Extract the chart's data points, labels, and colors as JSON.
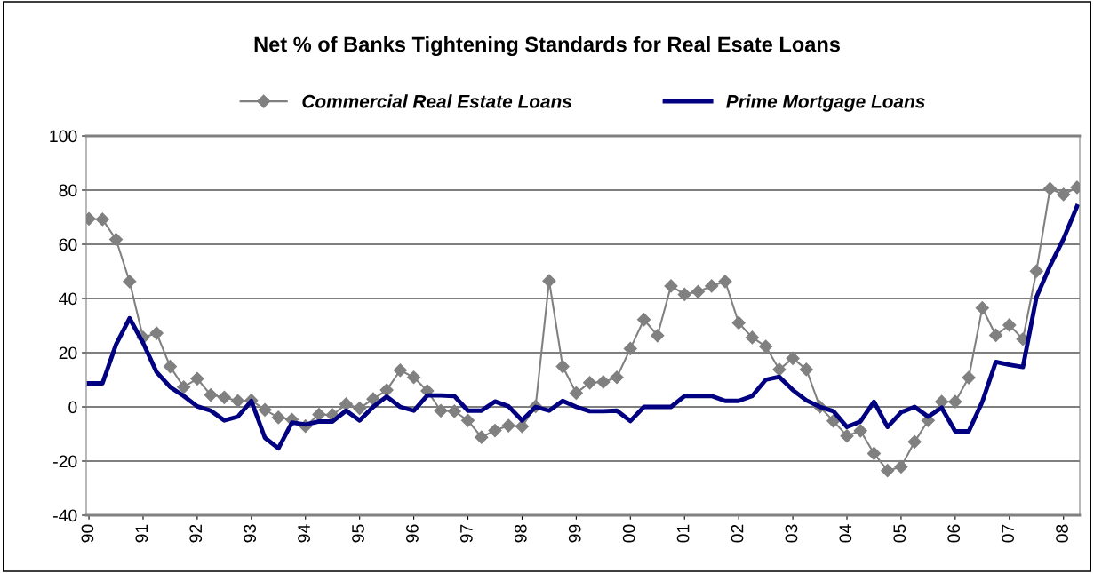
{
  "chart_data": {
    "type": "line",
    "title": "Net % of Banks Tightening Standards for Real Esate Loans",
    "categories": [
      "90",
      null,
      null,
      null,
      "91",
      null,
      null,
      null,
      "92",
      null,
      null,
      null,
      "93",
      null,
      null,
      null,
      "94",
      null,
      null,
      null,
      "95",
      null,
      null,
      null,
      "96",
      null,
      null,
      null,
      "97",
      null,
      null,
      null,
      "98",
      null,
      null,
      null,
      "99",
      null,
      null,
      null,
      "00",
      null,
      null,
      null,
      "01",
      null,
      null,
      null,
      "02",
      null,
      null,
      null,
      "03",
      null,
      null,
      null,
      "04",
      null,
      null,
      null,
      "05",
      null,
      null,
      null,
      "06",
      null,
      null,
      null,
      "07",
      null,
      null,
      null,
      "08",
      null
    ],
    "series": [
      {
        "name": "Commercial Real Estate Loans",
        "color": "#808080",
        "marker": "diamond",
        "values": [
          69.4,
          69.2,
          61.8,
          46.3,
          25.6,
          27.2,
          14.9,
          7.3,
          10.4,
          4.4,
          3.5,
          2.2,
          2.4,
          -1.1,
          -3.9,
          -4.7,
          -7.1,
          -2.8,
          -3,
          1,
          -0.5,
          2.9,
          6.2,
          13.5,
          10.9,
          5.9,
          -1.4,
          -1.6,
          -5,
          -11.2,
          -8.7,
          -6.9,
          -7.2,
          0.2,
          46.5,
          14.9,
          5.1,
          8.9,
          9.2,
          10.9,
          21.5,
          32.2,
          26.3,
          44.6,
          41.5,
          42.5,
          44.6,
          46.3,
          31,
          25.6,
          22.3,
          13.8,
          17.9,
          13.8,
          0,
          -5.2,
          -10.7,
          -8.8,
          -17.2,
          -23.5,
          -22.1,
          -12.9,
          -5,
          1.9,
          1.9,
          10.8,
          36.5,
          26.4,
          30.2,
          25,
          50.1,
          80.5,
          78.4,
          81
        ]
      },
      {
        "name": "Prime Mortgage Loans",
        "color": "#000080",
        "marker": "none",
        "values": [
          8.7,
          8.7,
          23,
          32.7,
          23.6,
          12.8,
          7.3,
          4,
          0.2,
          -1.4,
          -5,
          -3.6,
          2.2,
          -11.4,
          -15.3,
          -5.8,
          -6.5,
          -5.4,
          -5.4,
          -1.4,
          -5,
          0,
          3.8,
          0,
          -1.4,
          4.2,
          4.2,
          4,
          -1.4,
          -1.4,
          2,
          0.2,
          -5,
          0,
          -1.4,
          2.2,
          0,
          -1.6,
          -1.6,
          -1.4,
          -5.2,
          0,
          0,
          0,
          4,
          4,
          4,
          2.2,
          2.2,
          4,
          10,
          11.1,
          6.2,
          2.4,
          0,
          -1.6,
          -7.4,
          -5.4,
          1.9,
          -7.4,
          -2,
          0,
          -3.6,
          -0.3,
          -9,
          -9,
          1.9,
          16.6,
          15.5,
          14.7,
          40.5,
          52,
          62,
          74
        ]
      }
    ],
    "ylim": [
      -40,
      100
    ],
    "yticks": [
      -40,
      -20,
      0,
      20,
      40,
      60,
      80,
      100
    ],
    "grid": "y",
    "legend": "top"
  }
}
